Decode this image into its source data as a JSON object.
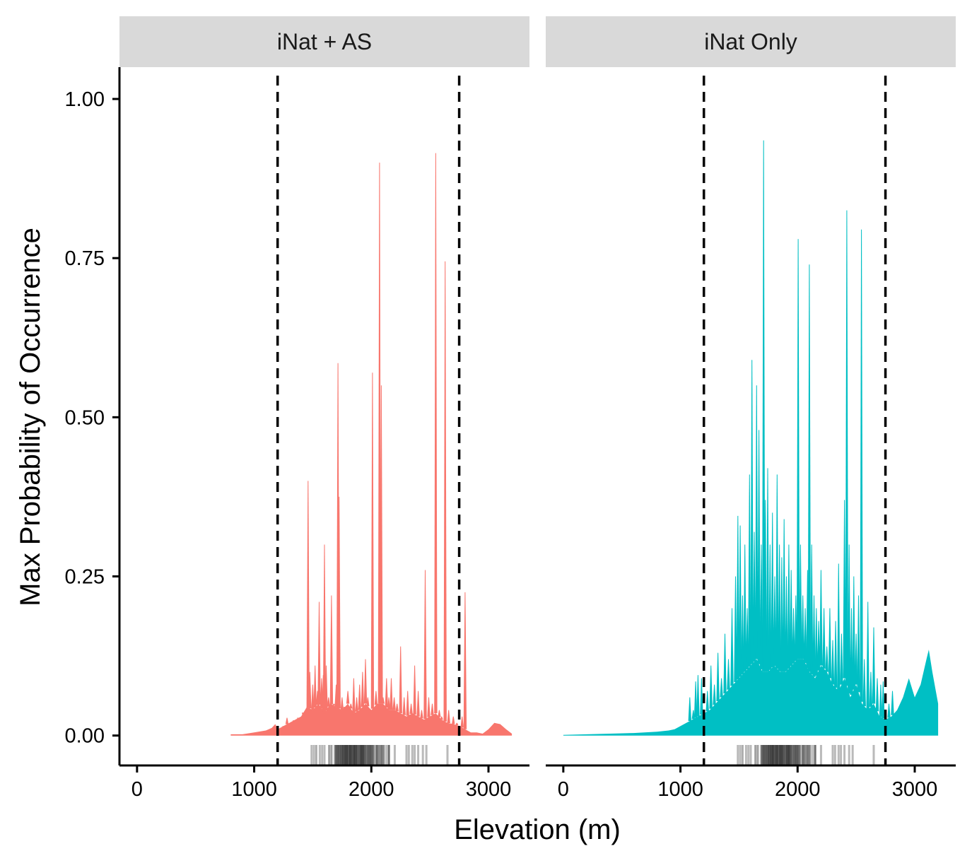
{
  "chart_data": {
    "type": "area",
    "xlabel": "Elevation (m)",
    "ylabel": "Max Probability of Occurrence",
    "xlim": [
      -150,
      3350
    ],
    "ylim": [
      -0.047,
      1.05
    ],
    "x_ticks": [
      0,
      1000,
      2000,
      3000
    ],
    "x_tick_labels": [
      "0",
      "1000",
      "2000",
      "3000"
    ],
    "y_ticks": [
      0,
      0.25,
      0.5,
      0.75,
      1.0
    ],
    "y_tick_labels": [
      "0.00",
      "0.25",
      "0.50",
      "0.75",
      "1.00"
    ],
    "vlines": [
      1200,
      2750
    ],
    "grid": false,
    "legend": "none",
    "panels": [
      {
        "label": "iNat + AS",
        "color": "#F8766D",
        "baseline": {
          "x": [
            800,
            900,
            1000,
            1100,
            1150,
            1180,
            1200,
            1250,
            1300,
            1350,
            1400,
            1450,
            1500,
            1550,
            1600,
            1650,
            1700,
            1750,
            1800,
            1850,
            1900,
            1950,
            2000,
            2050,
            2100,
            2150,
            2200,
            2250,
            2300,
            2350,
            2400,
            2450,
            2500,
            2550,
            2600,
            2650,
            2700,
            2750,
            2800,
            2850,
            2900,
            2950,
            3000,
            3050,
            3100,
            3150,
            3200
          ],
          "y": [
            0.002,
            0.002,
            0.005,
            0.008,
            0.012,
            0.018,
            0.01,
            0.015,
            0.02,
            0.025,
            0.03,
            0.045,
            0.04,
            0.05,
            0.035,
            0.05,
            0.045,
            0.04,
            0.05,
            0.035,
            0.04,
            0.05,
            0.04,
            0.05,
            0.05,
            0.04,
            0.04,
            0.035,
            0.03,
            0.035,
            0.03,
            0.025,
            0.03,
            0.035,
            0.025,
            0.02,
            0.018,
            0.015,
            0.01,
            0.005,
            0.005,
            0.003,
            0.01,
            0.02,
            0.018,
            0.01,
            0.003
          ]
        },
        "spikes": [
          {
            "x": 1245,
            "y": 0.015
          },
          {
            "x": 1280,
            "y": 0.028
          },
          {
            "x": 1340,
            "y": 0.022
          },
          {
            "x": 1380,
            "y": 0.012
          },
          {
            "x": 1420,
            "y": 0.025
          },
          {
            "x": 1460,
            "y": 0.4
          },
          {
            "x": 1475,
            "y": 0.1
          },
          {
            "x": 1500,
            "y": 0.08
          },
          {
            "x": 1520,
            "y": 0.11
          },
          {
            "x": 1540,
            "y": 0.07
          },
          {
            "x": 1555,
            "y": 0.21
          },
          {
            "x": 1575,
            "y": 0.09
          },
          {
            "x": 1590,
            "y": 0.095
          },
          {
            "x": 1600,
            "y": 0.3
          },
          {
            "x": 1615,
            "y": 0.11
          },
          {
            "x": 1635,
            "y": 0.06
          },
          {
            "x": 1660,
            "y": 0.22
          },
          {
            "x": 1680,
            "y": 0.05
          },
          {
            "x": 1700,
            "y": 0.08
          },
          {
            "x": 1715,
            "y": 0.585
          },
          {
            "x": 1725,
            "y": 0.375
          },
          {
            "x": 1750,
            "y": 0.06
          },
          {
            "x": 1775,
            "y": 0.03
          },
          {
            "x": 1800,
            "y": 0.07
          },
          {
            "x": 1825,
            "y": 0.05
          },
          {
            "x": 1850,
            "y": 0.09
          },
          {
            "x": 1875,
            "y": 0.06
          },
          {
            "x": 1900,
            "y": 0.08
          },
          {
            "x": 1925,
            "y": 0.1
          },
          {
            "x": 1950,
            "y": 0.12
          },
          {
            "x": 1970,
            "y": 0.06
          },
          {
            "x": 2010,
            "y": 0.57
          },
          {
            "x": 2040,
            "y": 0.07
          },
          {
            "x": 2070,
            "y": 0.9
          },
          {
            "x": 2085,
            "y": 0.55
          },
          {
            "x": 2100,
            "y": 0.06
          },
          {
            "x": 2130,
            "y": 0.09
          },
          {
            "x": 2150,
            "y": 0.06
          },
          {
            "x": 2170,
            "y": 0.09
          },
          {
            "x": 2195,
            "y": 0.06
          },
          {
            "x": 2220,
            "y": 0.05
          },
          {
            "x": 2250,
            "y": 0.14
          },
          {
            "x": 2280,
            "y": 0.06
          },
          {
            "x": 2310,
            "y": 0.07
          },
          {
            "x": 2340,
            "y": 0.05
          },
          {
            "x": 2370,
            "y": 0.11
          },
          {
            "x": 2400,
            "y": 0.07
          },
          {
            "x": 2430,
            "y": 0.04
          },
          {
            "x": 2460,
            "y": 0.26
          },
          {
            "x": 2490,
            "y": 0.06
          },
          {
            "x": 2520,
            "y": 0.05
          },
          {
            "x": 2550,
            "y": 0.915
          },
          {
            "x": 2580,
            "y": 0.04
          },
          {
            "x": 2600,
            "y": 0.03
          },
          {
            "x": 2630,
            "y": 0.745
          },
          {
            "x": 2660,
            "y": 0.04
          },
          {
            "x": 2700,
            "y": 0.03
          },
          {
            "x": 2730,
            "y": 0.02
          },
          {
            "x": 2775,
            "y": 0.03
          },
          {
            "x": 2800,
            "y": 0.225
          }
        ]
      },
      {
        "label": "iNat Only",
        "color": "#00BFC4",
        "baseline": {
          "x": [
            0,
            200,
            400,
            600,
            800,
            900,
            950,
            1000,
            1050,
            1100,
            1150,
            1200,
            1250,
            1300,
            1350,
            1400,
            1450,
            1500,
            1550,
            1600,
            1650,
            1700,
            1750,
            1800,
            1850,
            1900,
            1950,
            2000,
            2050,
            2100,
            2150,
            2200,
            2250,
            2300,
            2350,
            2400,
            2450,
            2500,
            2550,
            2600,
            2650,
            2700,
            2750,
            2800,
            2850,
            2900,
            2950,
            3000,
            3050,
            3100,
            3120,
            3150,
            3180,
            3200
          ],
          "y": [
            0.001,
            0.002,
            0.003,
            0.004,
            0.006,
            0.008,
            0.01,
            0.015,
            0.02,
            0.025,
            0.03,
            0.035,
            0.04,
            0.05,
            0.06,
            0.07,
            0.08,
            0.09,
            0.1,
            0.11,
            0.12,
            0.1,
            0.1,
            0.11,
            0.1,
            0.1,
            0.11,
            0.12,
            0.12,
            0.1,
            0.09,
            0.11,
            0.1,
            0.08,
            0.07,
            0.09,
            0.06,
            0.08,
            0.05,
            0.04,
            0.05,
            0.03,
            0.025,
            0.03,
            0.04,
            0.06,
            0.09,
            0.06,
            0.08,
            0.12,
            0.135,
            0.1,
            0.07,
            0.05
          ]
        },
        "spikes": [
          {
            "x": 1080,
            "y": 0.06
          },
          {
            "x": 1110,
            "y": 0.04
          },
          {
            "x": 1130,
            "y": 0.085
          },
          {
            "x": 1150,
            "y": 0.095
          },
          {
            "x": 1180,
            "y": 0.09
          },
          {
            "x": 1230,
            "y": 0.07
          },
          {
            "x": 1260,
            "y": 0.11
          },
          {
            "x": 1290,
            "y": 0.08
          },
          {
            "x": 1320,
            "y": 0.13
          },
          {
            "x": 1350,
            "y": 0.09
          },
          {
            "x": 1380,
            "y": 0.16
          },
          {
            "x": 1410,
            "y": 0.12
          },
          {
            "x": 1440,
            "y": 0.2
          },
          {
            "x": 1470,
            "y": 0.25
          },
          {
            "x": 1490,
            "y": 0.345
          },
          {
            "x": 1510,
            "y": 0.33
          },
          {
            "x": 1530,
            "y": 0.22
          },
          {
            "x": 1550,
            "y": 0.3
          },
          {
            "x": 1570,
            "y": 0.2
          },
          {
            "x": 1590,
            "y": 0.41
          },
          {
            "x": 1610,
            "y": 0.59
          },
          {
            "x": 1630,
            "y": 0.32
          },
          {
            "x": 1650,
            "y": 0.55
          },
          {
            "x": 1670,
            "y": 0.48
          },
          {
            "x": 1690,
            "y": 0.3
          },
          {
            "x": 1710,
            "y": 0.935
          },
          {
            "x": 1725,
            "y": 0.37
          },
          {
            "x": 1745,
            "y": 0.42
          },
          {
            "x": 1765,
            "y": 0.3
          },
          {
            "x": 1785,
            "y": 0.35
          },
          {
            "x": 1805,
            "y": 0.25
          },
          {
            "x": 1825,
            "y": 0.41
          },
          {
            "x": 1845,
            "y": 0.3
          },
          {
            "x": 1865,
            "y": 0.28
          },
          {
            "x": 1885,
            "y": 0.34
          },
          {
            "x": 1905,
            "y": 0.25
          },
          {
            "x": 1925,
            "y": 0.3
          },
          {
            "x": 1945,
            "y": 0.26
          },
          {
            "x": 1965,
            "y": 0.2
          },
          {
            "x": 1985,
            "y": 0.22
          },
          {
            "x": 2005,
            "y": 0.78
          },
          {
            "x": 2025,
            "y": 0.3
          },
          {
            "x": 2045,
            "y": 0.22
          },
          {
            "x": 2065,
            "y": 0.2
          },
          {
            "x": 2085,
            "y": 0.26
          },
          {
            "x": 2100,
            "y": 0.74
          },
          {
            "x": 2120,
            "y": 0.3
          },
          {
            "x": 2140,
            "y": 0.22
          },
          {
            "x": 2160,
            "y": 0.2
          },
          {
            "x": 2180,
            "y": 0.18
          },
          {
            "x": 2200,
            "y": 0.26
          },
          {
            "x": 2225,
            "y": 0.2
          },
          {
            "x": 2250,
            "y": 0.14
          },
          {
            "x": 2275,
            "y": 0.2
          },
          {
            "x": 2300,
            "y": 0.15
          },
          {
            "x": 2325,
            "y": 0.18
          },
          {
            "x": 2350,
            "y": 0.27
          },
          {
            "x": 2375,
            "y": 0.16
          },
          {
            "x": 2400,
            "y": 0.37
          },
          {
            "x": 2420,
            "y": 0.825
          },
          {
            "x": 2440,
            "y": 0.3
          },
          {
            "x": 2460,
            "y": 0.2
          },
          {
            "x": 2480,
            "y": 0.25
          },
          {
            "x": 2500,
            "y": 0.16
          },
          {
            "x": 2520,
            "y": 0.22
          },
          {
            "x": 2545,
            "y": 0.795
          },
          {
            "x": 2570,
            "y": 0.12
          },
          {
            "x": 2600,
            "y": 0.21
          },
          {
            "x": 2625,
            "y": 0.1
          },
          {
            "x": 2650,
            "y": 0.17
          },
          {
            "x": 2680,
            "y": 0.09
          },
          {
            "x": 2710,
            "y": 0.08
          },
          {
            "x": 2730,
            "y": 0.085
          },
          {
            "x": 2780,
            "y": 0.05
          },
          {
            "x": 2810,
            "y": 0.07
          }
        ]
      }
    ],
    "rug": {
      "x": [
        1490,
        1510,
        1530,
        1560,
        1580,
        1600,
        1640,
        1660,
        1690,
        1700,
        1710,
        1720,
        1730,
        1740,
        1750,
        1760,
        1770,
        1780,
        1790,
        1800,
        1810,
        1820,
        1830,
        1840,
        1850,
        1860,
        1870,
        1880,
        1890,
        1900,
        1910,
        1920,
        1930,
        1940,
        1950,
        1960,
        1970,
        1980,
        1990,
        2000,
        2010,
        2020,
        2040,
        2050,
        2060,
        2070,
        2080,
        2090,
        2100,
        2110,
        2130,
        2150,
        2200,
        2300,
        2320,
        2350,
        2370,
        2400,
        2440,
        2470,
        2650
      ],
      "weight": [
        0.3,
        0.3,
        0.4,
        0.3,
        0.3,
        0.3,
        0.5,
        0.5,
        0.6,
        0.6,
        0.7,
        0.7,
        0.6,
        0.7,
        0.8,
        0.7,
        0.8,
        0.9,
        0.8,
        0.8,
        0.7,
        0.9,
        0.8,
        0.7,
        0.8,
        0.9,
        0.8,
        0.7,
        0.6,
        0.7,
        0.8,
        0.9,
        0.8,
        0.7,
        0.6,
        0.5,
        0.6,
        0.7,
        0.6,
        0.7,
        0.5,
        0.6,
        0.6,
        0.5,
        0.4,
        0.3,
        0.4,
        0.5,
        0.4,
        0.3,
        0.3,
        0.9,
        0.3,
        0.3,
        0.3,
        0.3,
        0.3,
        0.3,
        0.3,
        0.3,
        0.3
      ]
    }
  }
}
